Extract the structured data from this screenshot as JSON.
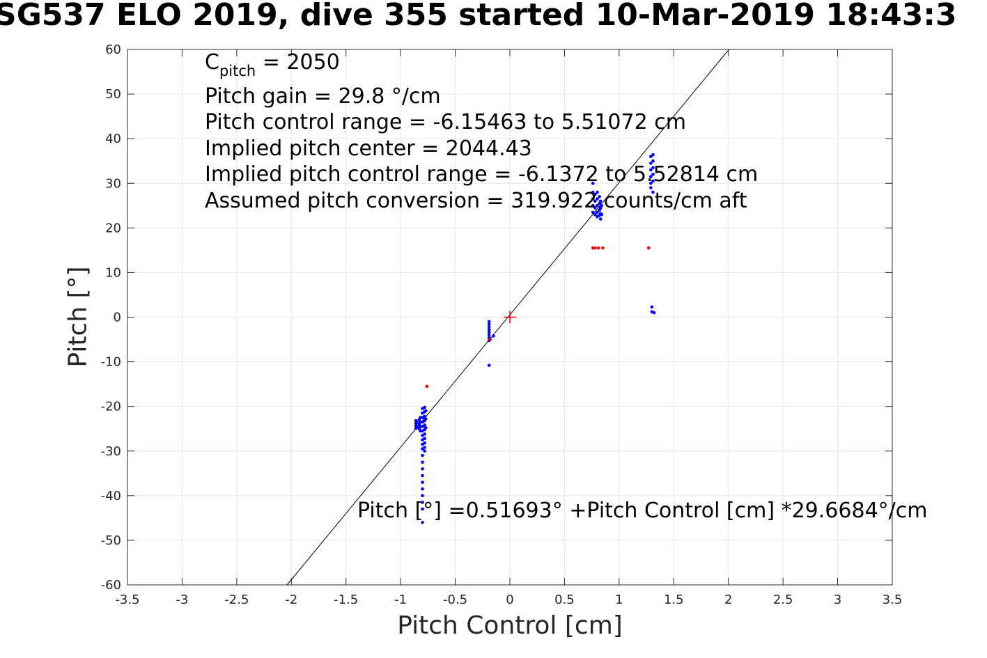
{
  "chart_data": {
    "type": "scatter",
    "title": "SG537 ELO 2019, dive 355 started 10-Mar-2019 18:43:3",
    "xlabel": "Pitch Control [cm]",
    "ylabel": "Pitch [°]",
    "xlim": [
      -3.5,
      3.5
    ],
    "ylim": [
      -60,
      60
    ],
    "grid": true,
    "x_ticks": [
      "-3.5",
      "-3",
      "-2.5",
      "-2",
      "-1.5",
      "-1",
      "-0.5",
      "0",
      "0.5",
      "1",
      "1.5",
      "2",
      "2.5",
      "3",
      "3.5"
    ],
    "y_ticks": [
      "60",
      "50",
      "40",
      "30",
      "20",
      "10",
      "0",
      "-10",
      "-20",
      "-30",
      "-40",
      "-50",
      "-60"
    ],
    "annotations": {
      "c_pitch_main": "C",
      "c_pitch_sub": "pitch",
      "c_pitch_value": " = 2050",
      "lines": [
        "Pitch gain = 29.8 °/cm",
        "Pitch control range = -6.15463 to 5.51072 cm",
        "Implied pitch center = 2044.43",
        "Implied pitch control range = -6.1372 to 5.52814 cm",
        "Assumed pitch conversion = 319.922 counts/cm aft"
      ],
      "fit_text": "Pitch [°] =0.51693° +Pitch Control [cm] *29.6684°/cm"
    },
    "fit_line": {
      "intercept": 0.51693,
      "slope": 29.6684,
      "color": "#000000"
    },
    "center_marker": {
      "x": 0,
      "y": 0,
      "color": "#ff0000"
    },
    "colors": {
      "blue": "#0000ff",
      "red": "#ff0000",
      "grid": "#e6e6e6",
      "axis": "#262626"
    },
    "series": [
      {
        "color": "#0000ff",
        "points": [
          [
            -0.86,
            -23.2
          ],
          [
            -0.86,
            -23.8
          ],
          [
            -0.86,
            -24.3
          ],
          [
            -0.86,
            -24.9
          ],
          [
            -0.85,
            -23.6
          ],
          [
            -0.85,
            -24.6
          ],
          [
            -0.83,
            -23.0
          ],
          [
            -0.83,
            -24.0
          ],
          [
            -0.83,
            -25.0
          ],
          [
            -0.82,
            -22.5
          ],
          [
            -0.82,
            -23.5
          ],
          [
            -0.82,
            -24.5
          ],
          [
            -0.82,
            -25.5
          ],
          [
            -0.8,
            -20.5
          ],
          [
            -0.8,
            -21.5
          ],
          [
            -0.8,
            -22.5
          ],
          [
            -0.8,
            -23.5
          ],
          [
            -0.8,
            -24.5
          ],
          [
            -0.8,
            -25.5
          ],
          [
            -0.8,
            -26.5
          ],
          [
            -0.8,
            -27.5
          ],
          [
            -0.8,
            -28.5
          ],
          [
            -0.8,
            -29.5
          ],
          [
            -0.8,
            -31.0
          ],
          [
            -0.8,
            -32.5
          ],
          [
            -0.8,
            -34.0
          ],
          [
            -0.8,
            -35.5
          ],
          [
            -0.8,
            -37.0
          ],
          [
            -0.8,
            -38.5
          ],
          [
            -0.8,
            -40.0
          ],
          [
            -0.8,
            -41.5
          ],
          [
            -0.8,
            -43.0
          ],
          [
            -0.8,
            -46.0
          ],
          [
            -0.78,
            -20.2
          ],
          [
            -0.78,
            -21.2
          ],
          [
            -0.78,
            -22.2
          ],
          [
            -0.78,
            -23.2
          ],
          [
            -0.78,
            -24.2
          ],
          [
            -0.78,
            -25.2
          ],
          [
            -0.78,
            -26.2
          ],
          [
            -0.78,
            -27.2
          ],
          [
            -0.78,
            -28.2
          ],
          [
            -0.78,
            -29.2
          ],
          [
            -0.78,
            -30.0
          ],
          [
            -0.77,
            -21.0
          ],
          [
            -0.77,
            -22.8
          ],
          [
            -0.77,
            -24.8
          ],
          [
            -0.19,
            -1.0
          ],
          [
            -0.19,
            -1.6
          ],
          [
            -0.19,
            -2.2
          ],
          [
            -0.19,
            -2.8
          ],
          [
            -0.19,
            -3.4
          ],
          [
            -0.19,
            -4.0
          ],
          [
            -0.19,
            -4.6
          ],
          [
            -0.19,
            -5.2
          ],
          [
            -0.19,
            -10.8
          ],
          [
            -0.15,
            -4.2
          ],
          [
            0.76,
            30.0
          ],
          [
            0.76,
            28.0
          ],
          [
            0.76,
            26.5
          ],
          [
            0.76,
            25.0
          ],
          [
            0.76,
            23.5
          ],
          [
            0.78,
            27.5
          ],
          [
            0.78,
            26.0
          ],
          [
            0.78,
            24.5
          ],
          [
            0.78,
            23.0
          ],
          [
            0.8,
            28.0
          ],
          [
            0.8,
            26.5
          ],
          [
            0.8,
            25.0
          ],
          [
            0.8,
            23.5
          ],
          [
            0.8,
            22.5
          ],
          [
            0.82,
            27.0
          ],
          [
            0.82,
            25.5
          ],
          [
            0.82,
            24.0
          ],
          [
            0.82,
            22.8
          ],
          [
            0.83,
            26.0
          ],
          [
            0.83,
            24.5
          ],
          [
            0.83,
            23.2
          ],
          [
            0.83,
            22.0
          ],
          [
            0.84,
            25.0
          ],
          [
            0.84,
            23.0
          ],
          [
            1.29,
            36.0
          ],
          [
            1.29,
            34.5
          ],
          [
            1.29,
            33.0
          ],
          [
            1.29,
            31.5
          ],
          [
            1.29,
            30.0
          ],
          [
            1.29,
            29.0
          ],
          [
            1.31,
            36.4
          ],
          [
            1.31,
            35.0
          ],
          [
            1.31,
            33.5
          ],
          [
            1.31,
            32.0
          ],
          [
            1.31,
            30.5
          ],
          [
            1.31,
            28.0
          ],
          [
            1.3,
            2.3
          ],
          [
            1.3,
            1.2
          ],
          [
            1.32,
            1.0
          ]
        ]
      },
      {
        "color": "#ff0000",
        "points": [
          [
            -0.76,
            -15.5
          ],
          [
            -0.18,
            -5.0
          ],
          [
            0.76,
            15.5
          ],
          [
            0.78,
            15.5
          ],
          [
            0.81,
            15.5
          ],
          [
            0.85,
            15.5
          ],
          [
            1.27,
            15.5
          ]
        ]
      }
    ]
  }
}
